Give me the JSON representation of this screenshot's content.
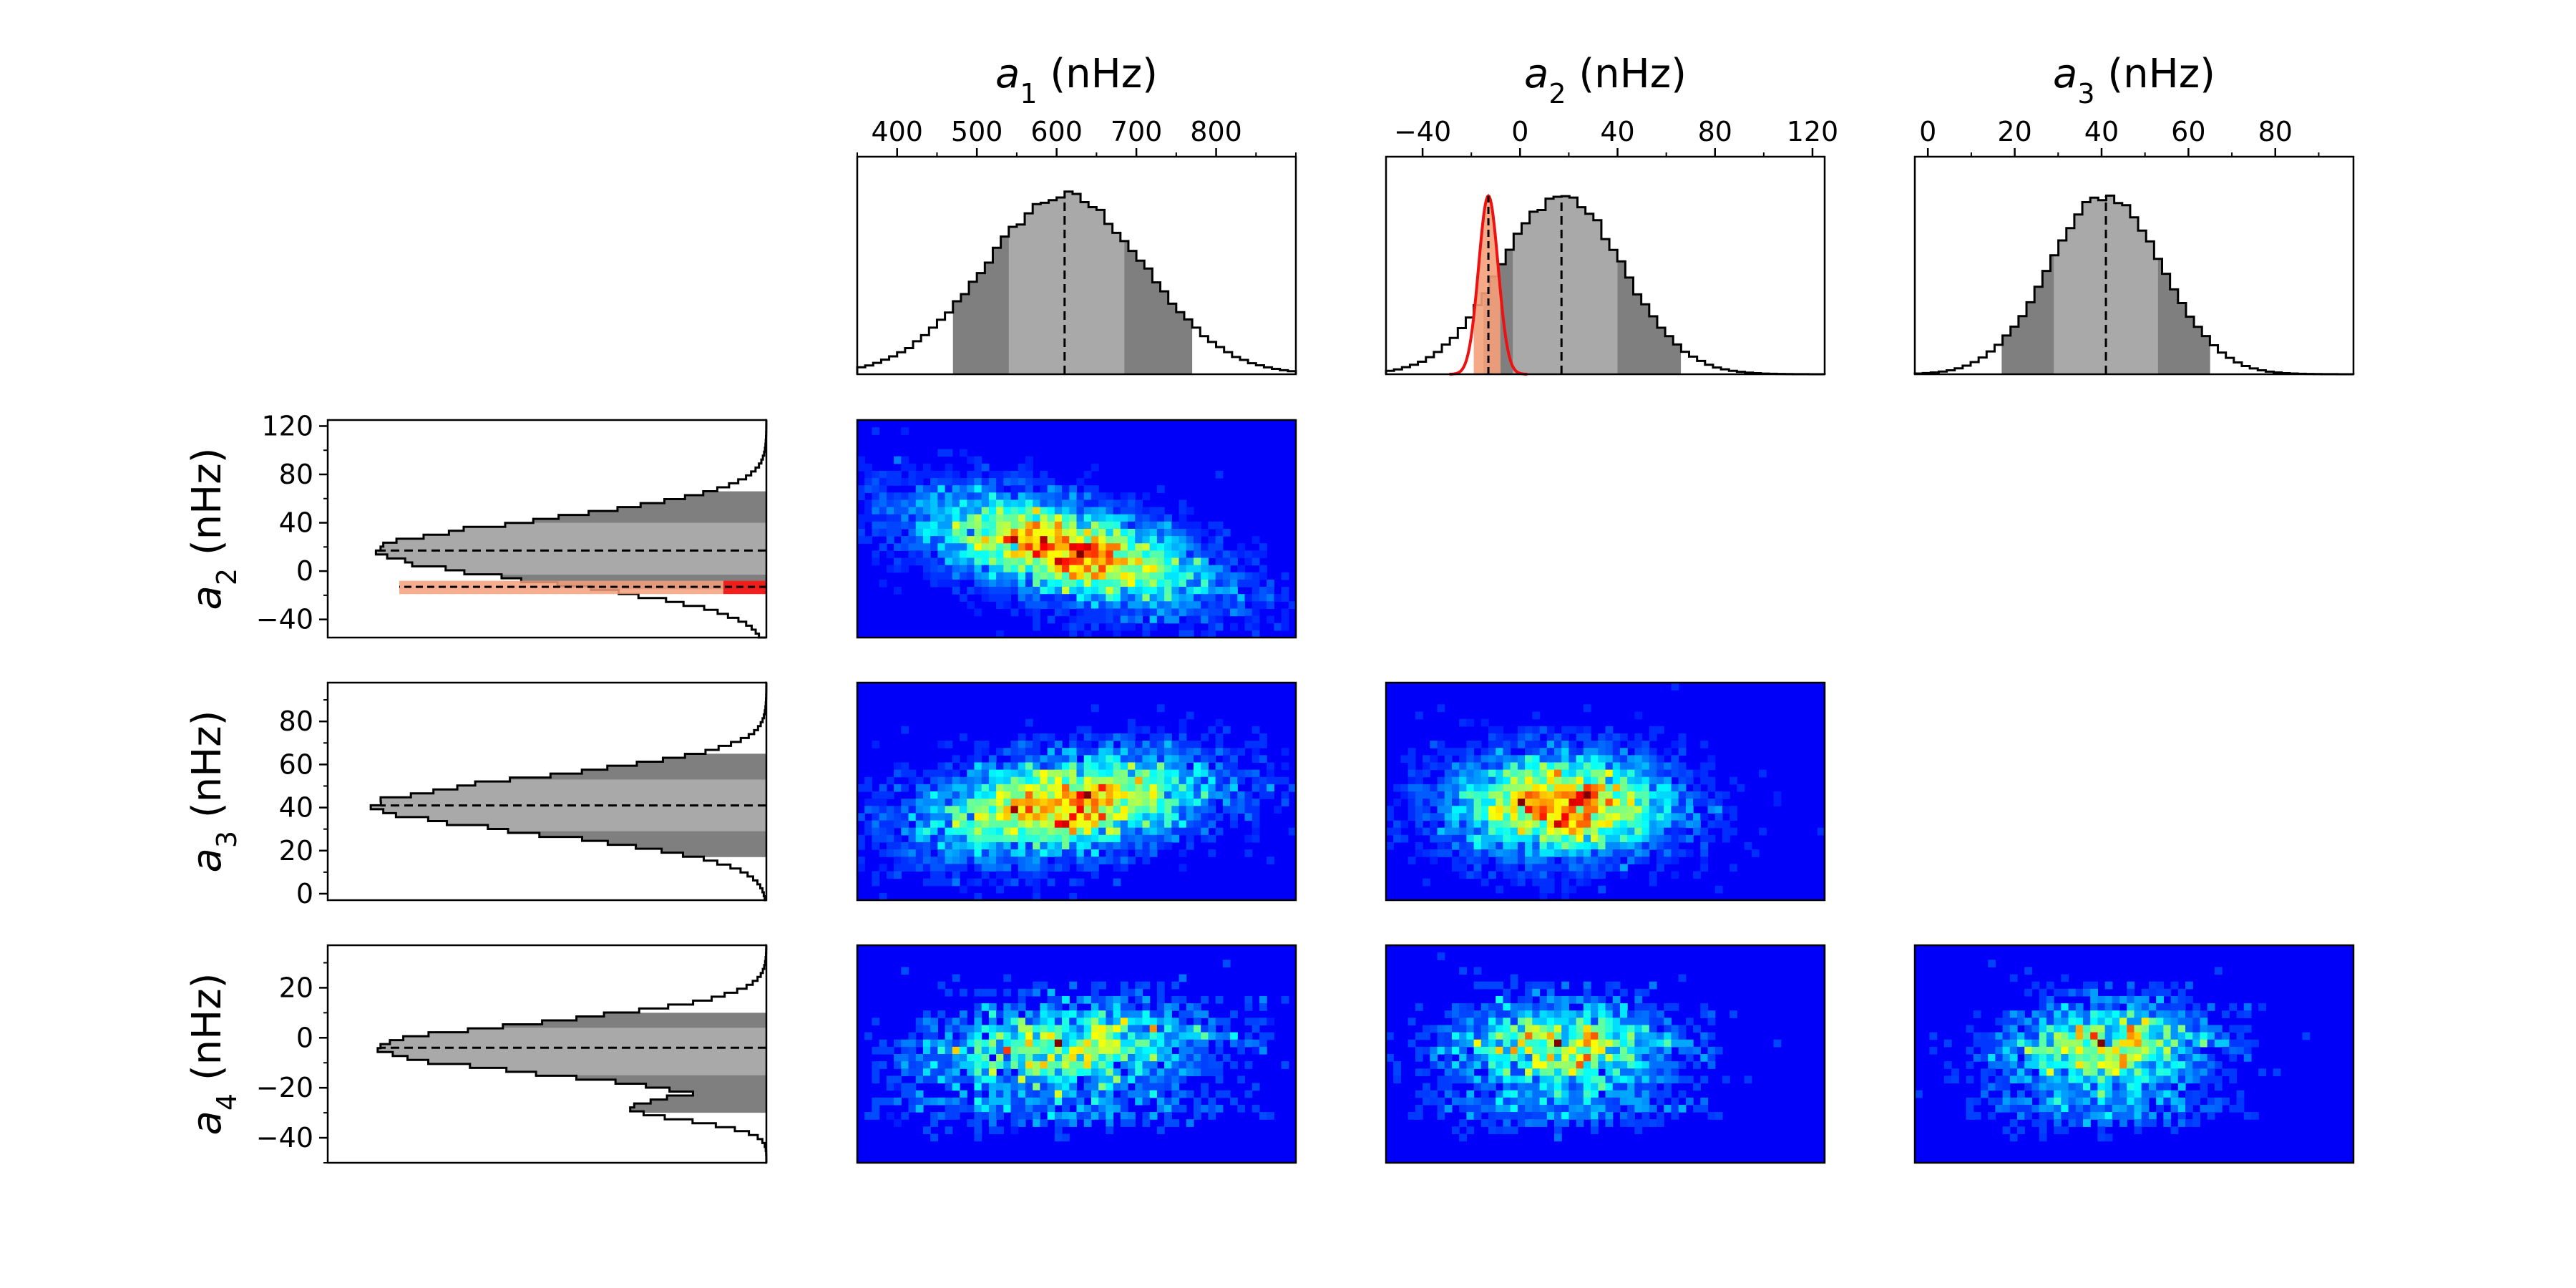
{
  "chart_data": {
    "type": "corner_plot",
    "unit": "nHz",
    "params": [
      {
        "key": "a1",
        "sym": "a",
        "sub": "1",
        "unit": "nHz",
        "range": [
          350,
          900
        ],
        "ticks": [
          400,
          500,
          600,
          700,
          800
        ],
        "median": 610,
        "sigma": 100,
        "inner": [
          540,
          685
        ],
        "outer": [
          470,
          770
        ]
      },
      {
        "key": "a2",
        "sym": "a",
        "sub": "2",
        "unit": "nHz",
        "range": [
          -55,
          125
        ],
        "ticks": [
          -40,
          0,
          40,
          80,
          120
        ],
        "median": 17,
        "sigma": 25,
        "inner": [
          -3,
          40
        ],
        "outer": [
          -15,
          66
        ]
      },
      {
        "key": "a3",
        "sym": "a",
        "sub": "3",
        "unit": "nHz",
        "range": [
          -3,
          98
        ],
        "ticks": [
          0,
          20,
          40,
          60,
          80
        ],
        "median": 41,
        "sigma": 13,
        "inner": [
          29,
          53
        ],
        "outer": [
          17,
          65
        ]
      },
      {
        "key": "a4",
        "sym": "a",
        "sub": "4",
        "unit": "nHz",
        "range": [
          -50,
          37
        ],
        "ticks": [
          -40,
          -20,
          0,
          20
        ],
        "median": -4,
        "sigma": 10,
        "inner": [
          -15,
          4
        ],
        "outer": [
          -30,
          10
        ]
      }
    ],
    "red_overlay": {
      "param": "a2",
      "median": -13,
      "sigma": 4,
      "band": [
        -19,
        -8
      ]
    },
    "diagonal_top": [
      "a1",
      "a2",
      "a3"
    ],
    "diagonal_left": [
      "a2",
      "a3",
      "a4"
    ],
    "joint_panels": [
      {
        "x": "a1",
        "y": "a2",
        "rho": -0.55
      },
      {
        "x": "a1",
        "y": "a3",
        "rho": 0.35
      },
      {
        "x": "a2",
        "y": "a3",
        "rho": 0.0
      },
      {
        "x": "a1",
        "y": "a4",
        "rho": 0.2
      },
      {
        "x": "a2",
        "y": "a4",
        "rho": 0.0
      },
      {
        "x": "a3",
        "y": "a4",
        "rho": 0.1
      }
    ],
    "colors": {
      "outer_band": "#7f7f7f",
      "inner_band": "#a9a9a9",
      "step_line": "#000000",
      "overlay_line": "#ee1111",
      "overlay_fill": "#f4a07a",
      "colormap": "jet"
    }
  }
}
